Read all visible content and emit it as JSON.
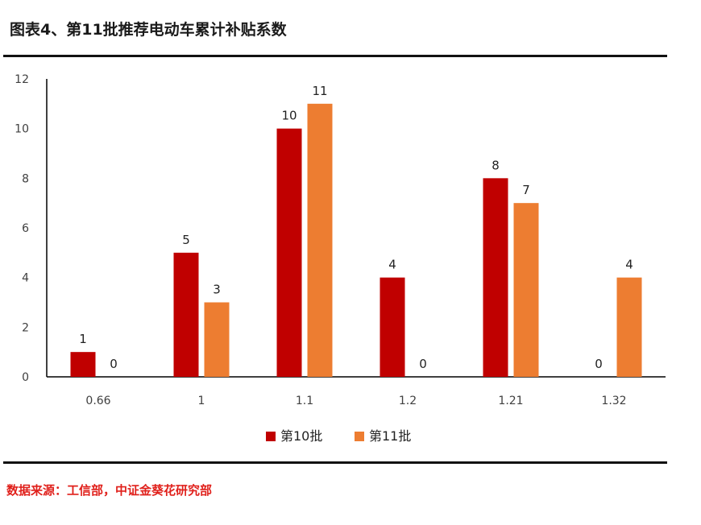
{
  "figure": {
    "title": "图表4、第11批推荐电动车累计补贴系数",
    "source": "数据来源：工信部，中证金葵花研究部"
  },
  "colors": {
    "series_1": "#c00000",
    "series_2": "#ed7d31",
    "axis": "#000000",
    "tick_text": "#404040",
    "label_text": "#222222"
  },
  "chart_data": {
    "type": "bar",
    "categories": [
      "0.66",
      "1",
      "1.1",
      "1.2",
      "1.21",
      "1.32"
    ],
    "series": [
      {
        "name": "第10批",
        "values": [
          1,
          5,
          10,
          4,
          8,
          0
        ]
      },
      {
        "name": "第11批",
        "values": [
          0,
          3,
          11,
          0,
          7,
          4
        ]
      }
    ],
    "title": "",
    "xlabel": "",
    "ylabel": "",
    "ylim": [
      0,
      12
    ],
    "yticks": [
      0,
      2,
      4,
      6,
      8,
      10,
      12
    ],
    "grid": false,
    "data_labels": true,
    "legend_position": "bottom"
  }
}
